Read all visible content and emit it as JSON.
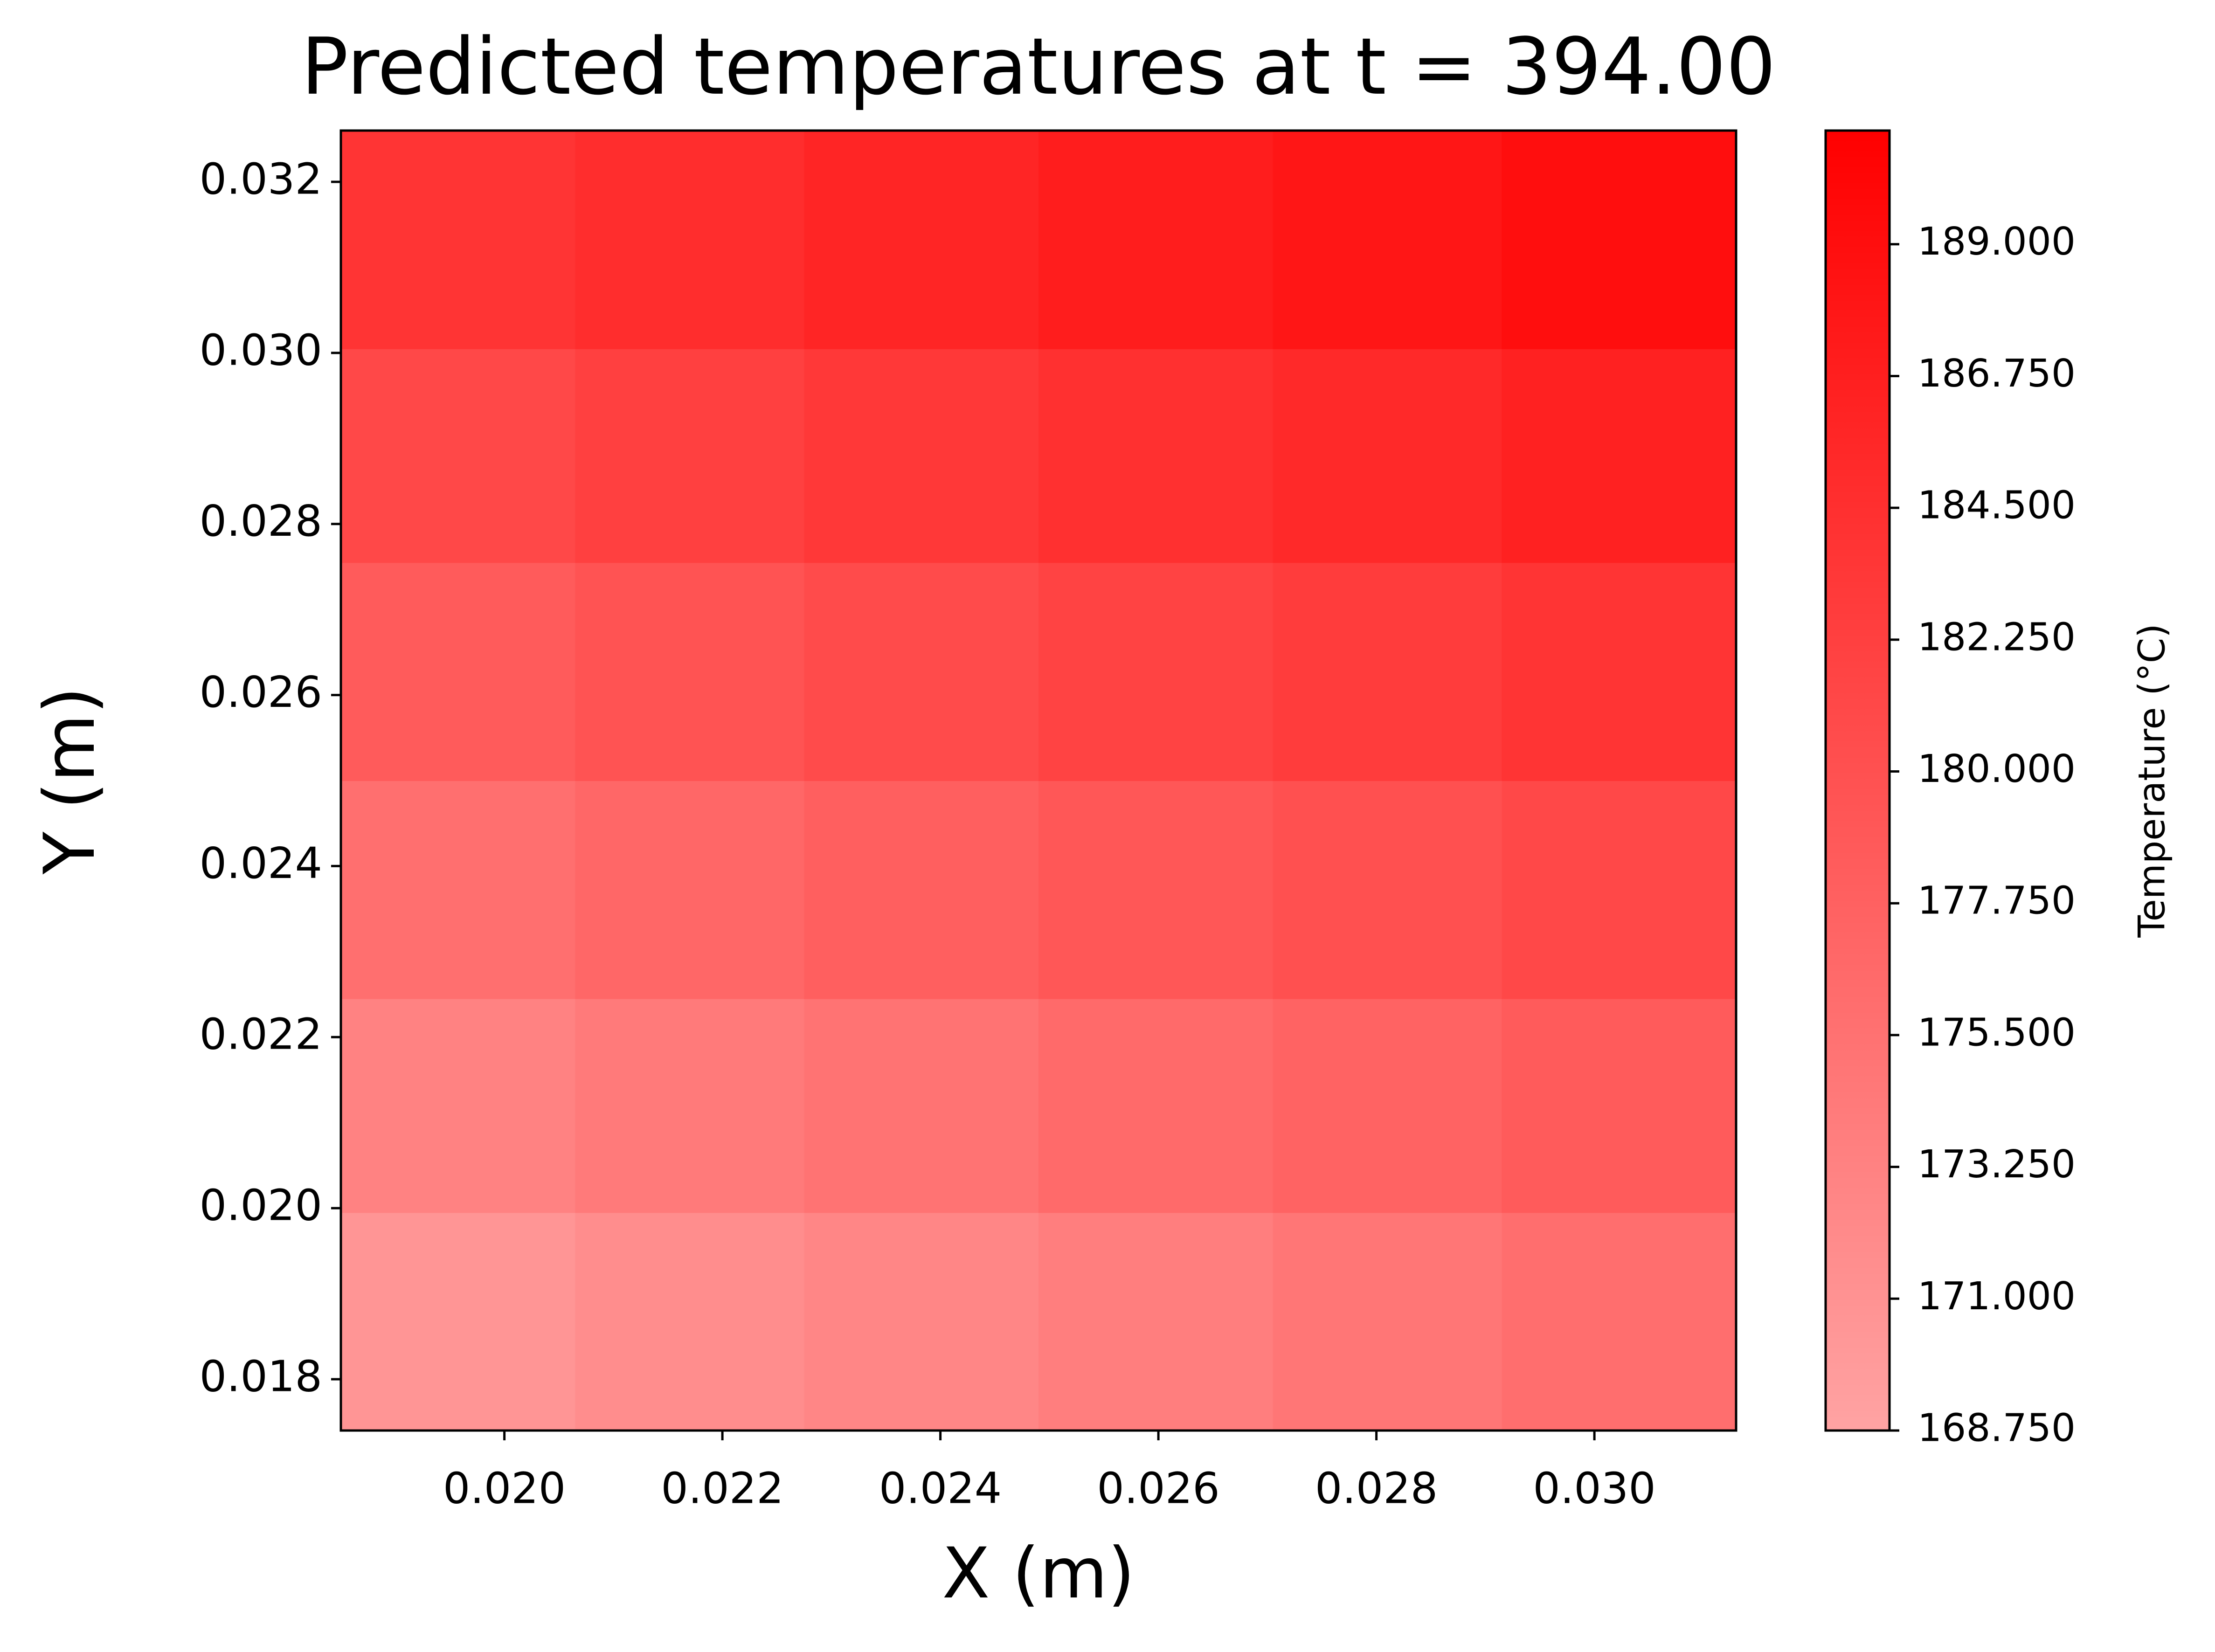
{
  "chart_data": {
    "type": "heatmap",
    "title": "Predicted temperatures at t = 394.00",
    "x_label": "X (m)",
    "y_label": "Y (m)",
    "colorbar_label": "Temperature (°C)",
    "x": [
      0.0196,
      0.0217,
      0.0238,
      0.026,
      0.0281,
      0.0302
    ],
    "y": [
      0.0187,
      0.0212,
      0.0237,
      0.0263,
      0.0288,
      0.0313
    ],
    "z": [
      [
        170.65,
        171.7,
        172.75,
        173.85,
        174.9,
        175.95
      ],
      [
        173.25,
        174.3,
        175.35,
        176.45,
        177.5,
        178.55
      ],
      [
        175.85,
        176.9,
        177.95,
        179.05,
        180.1,
        181.15
      ],
      [
        178.6,
        179.6,
        180.7,
        181.8,
        182.8,
        183.9
      ],
      [
        181.2,
        182.2,
        183.3,
        184.4,
        185.4,
        186.5
      ],
      [
        183.8,
        184.8,
        185.9,
        187.0,
        188.0,
        189.1
      ]
    ],
    "xlim": [
      0.0185,
      0.0313
    ],
    "ylim": [
      0.0174,
      0.0326
    ],
    "xticks": [
      {
        "value": 0.02,
        "label": "0.020"
      },
      {
        "value": 0.022,
        "label": "0.022"
      },
      {
        "value": 0.024,
        "label": "0.024"
      },
      {
        "value": 0.026,
        "label": "0.026"
      },
      {
        "value": 0.028,
        "label": "0.028"
      },
      {
        "value": 0.03,
        "label": "0.030"
      }
    ],
    "yticks": [
      {
        "value": 0.018,
        "label": "0.018"
      },
      {
        "value": 0.02,
        "label": "0.020"
      },
      {
        "value": 0.022,
        "label": "0.022"
      },
      {
        "value": 0.024,
        "label": "0.024"
      },
      {
        "value": 0.026,
        "label": "0.026"
      },
      {
        "value": 0.028,
        "label": "0.028"
      },
      {
        "value": 0.03,
        "label": "0.030"
      },
      {
        "value": 0.032,
        "label": "0.032"
      }
    ],
    "zlim": [
      168.75,
      190.94
    ],
    "zticks": [
      {
        "value": 168.75,
        "label": "168.750"
      },
      {
        "value": 171,
        "label": "171.000"
      },
      {
        "value": 173.25,
        "label": "173.250"
      },
      {
        "value": 175.5,
        "label": "175.500"
      },
      {
        "value": 177.75,
        "label": "177.750"
      },
      {
        "value": 180,
        "label": "180.000"
      },
      {
        "value": 182.25,
        "label": "182.250"
      },
      {
        "value": 184.5,
        "label": "184.500"
      },
      {
        "value": 186.75,
        "label": "186.750"
      },
      {
        "value": 189,
        "label": "189.000"
      }
    ],
    "cmap": [
      "#ffa3a3",
      "#ff0000"
    ]
  }
}
